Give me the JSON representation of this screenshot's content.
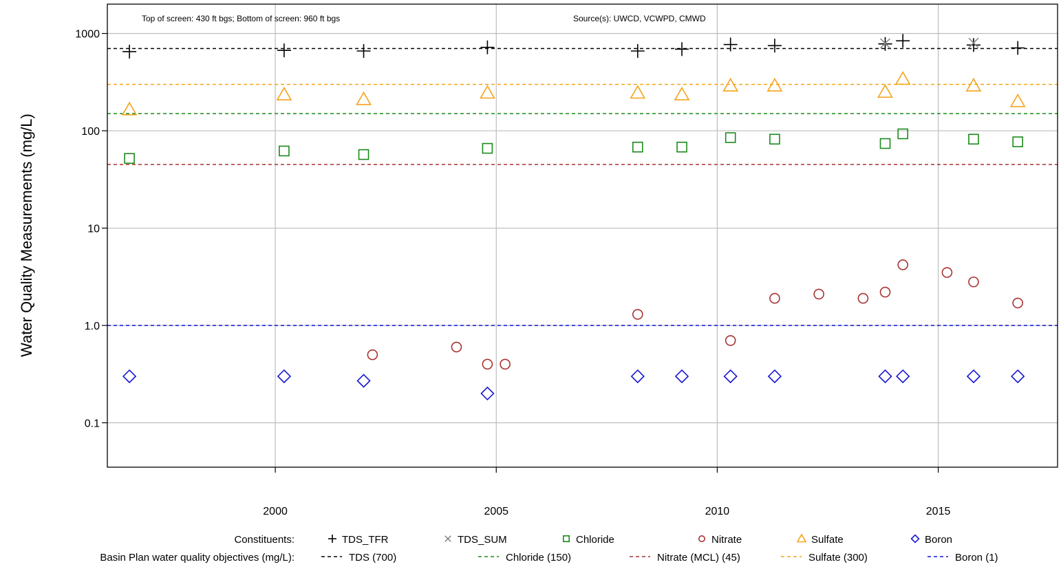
{
  "chart_data": {
    "type": "scatter",
    "ylabel": "Water Quality Measurements (mg/L)",
    "xlabel": "",
    "y_scale": "log",
    "ylim": [
      0.035,
      2000
    ],
    "xlim": [
      1996.2,
      2017.7
    ],
    "grid": true,
    "annotations": {
      "screen": "Top of screen: 430 ft bgs; Bottom of screen: 960 ft bgs",
      "sources": "Source(s): UWCD, VCWPD, CMWD"
    },
    "y_ticks": [
      {
        "value": 0.1,
        "label": "0.1"
      },
      {
        "value": 1,
        "label": "1.0"
      },
      {
        "value": 10,
        "label": "10"
      },
      {
        "value": 100,
        "label": "100"
      },
      {
        "value": 1000,
        "label": "1000"
      }
    ],
    "x_ticks": [
      {
        "value": 2000,
        "label": "2000"
      },
      {
        "value": 2005,
        "label": "2005"
      },
      {
        "value": 2010,
        "label": "2010"
      },
      {
        "value": 2015,
        "label": "2015"
      }
    ],
    "series": [
      {
        "name": "TDS_TFR",
        "marker": "plus",
        "color": "#000000",
        "points": [
          [
            1996.7,
            650
          ],
          [
            2000.2,
            670
          ],
          [
            2002.0,
            660
          ],
          [
            2004.8,
            720
          ],
          [
            2008.2,
            660
          ],
          [
            2009.2,
            690
          ],
          [
            2010.3,
            770
          ],
          [
            2011.3,
            750
          ],
          [
            2013.8,
            780
          ],
          [
            2014.2,
            840
          ],
          [
            2015.8,
            760
          ],
          [
            2016.8,
            710
          ]
        ]
      },
      {
        "name": "TDS_SUM",
        "marker": "cross",
        "color": "#888888",
        "points": [
          [
            2013.8,
            790
          ],
          [
            2015.8,
            800
          ]
        ]
      },
      {
        "name": "Chloride",
        "marker": "square",
        "color": "#1a8a1a",
        "points": [
          [
            1996.7,
            52
          ],
          [
            2000.2,
            62
          ],
          [
            2002.0,
            57
          ],
          [
            2004.8,
            66
          ],
          [
            2008.2,
            68
          ],
          [
            2009.2,
            68
          ],
          [
            2010.3,
            85
          ],
          [
            2011.3,
            82
          ],
          [
            2013.8,
            74
          ],
          [
            2014.2,
            93
          ],
          [
            2015.8,
            82
          ],
          [
            2016.8,
            77
          ]
        ]
      },
      {
        "name": "Nitrate",
        "marker": "circle",
        "color": "#a83232",
        "points": [
          [
            2002.2,
            0.5
          ],
          [
            2004.1,
            0.6
          ],
          [
            2004.8,
            0.4
          ],
          [
            2005.2,
            0.4
          ],
          [
            2008.2,
            1.3
          ],
          [
            2010.3,
            0.7
          ],
          [
            2011.3,
            1.9
          ],
          [
            2012.3,
            2.1
          ],
          [
            2013.3,
            1.9
          ],
          [
            2013.8,
            2.2
          ],
          [
            2014.2,
            4.2
          ],
          [
            2015.2,
            3.5
          ],
          [
            2015.8,
            2.8
          ],
          [
            2016.8,
            1.7
          ]
        ]
      },
      {
        "name": "Sulfate",
        "marker": "triangle",
        "color": "#f5a31a",
        "points": [
          [
            1996.7,
            165
          ],
          [
            2000.2,
            235
          ],
          [
            2002.0,
            210
          ],
          [
            2004.8,
            245
          ],
          [
            2008.2,
            245
          ],
          [
            2009.2,
            235
          ],
          [
            2010.3,
            290
          ],
          [
            2011.3,
            290
          ],
          [
            2013.8,
            250
          ],
          [
            2014.2,
            340
          ],
          [
            2015.8,
            290
          ],
          [
            2016.8,
            200
          ]
        ]
      },
      {
        "name": "Boron",
        "marker": "diamond",
        "color": "#1414d4",
        "points": [
          [
            1996.7,
            0.3
          ],
          [
            2000.2,
            0.3
          ],
          [
            2002.0,
            0.27
          ],
          [
            2004.8,
            0.2
          ],
          [
            2008.2,
            0.3
          ],
          [
            2009.2,
            0.3
          ],
          [
            2010.3,
            0.3
          ],
          [
            2011.3,
            0.3
          ],
          [
            2013.8,
            0.3
          ],
          [
            2014.2,
            0.3
          ],
          [
            2015.8,
            0.3
          ],
          [
            2016.8,
            0.3
          ]
        ]
      }
    ],
    "objectives": [
      {
        "name": "TDS (700)",
        "value": 700,
        "color": "#000000"
      },
      {
        "name": "Chloride (150)",
        "value": 150,
        "color": "#1a8a1a"
      },
      {
        "name": "Nitrate (MCL) (45)",
        "value": 45,
        "color": "#a83232"
      },
      {
        "name": "Sulfate (300)",
        "value": 300,
        "color": "#f5a31a"
      },
      {
        "name": "Boron (1)",
        "value": 1,
        "color": "#1414d4"
      }
    ],
    "legend": {
      "placement": "bottom",
      "constituents_title": "Constituents:",
      "objectives_title": "Basin Plan water quality objectives (mg/L):"
    }
  }
}
